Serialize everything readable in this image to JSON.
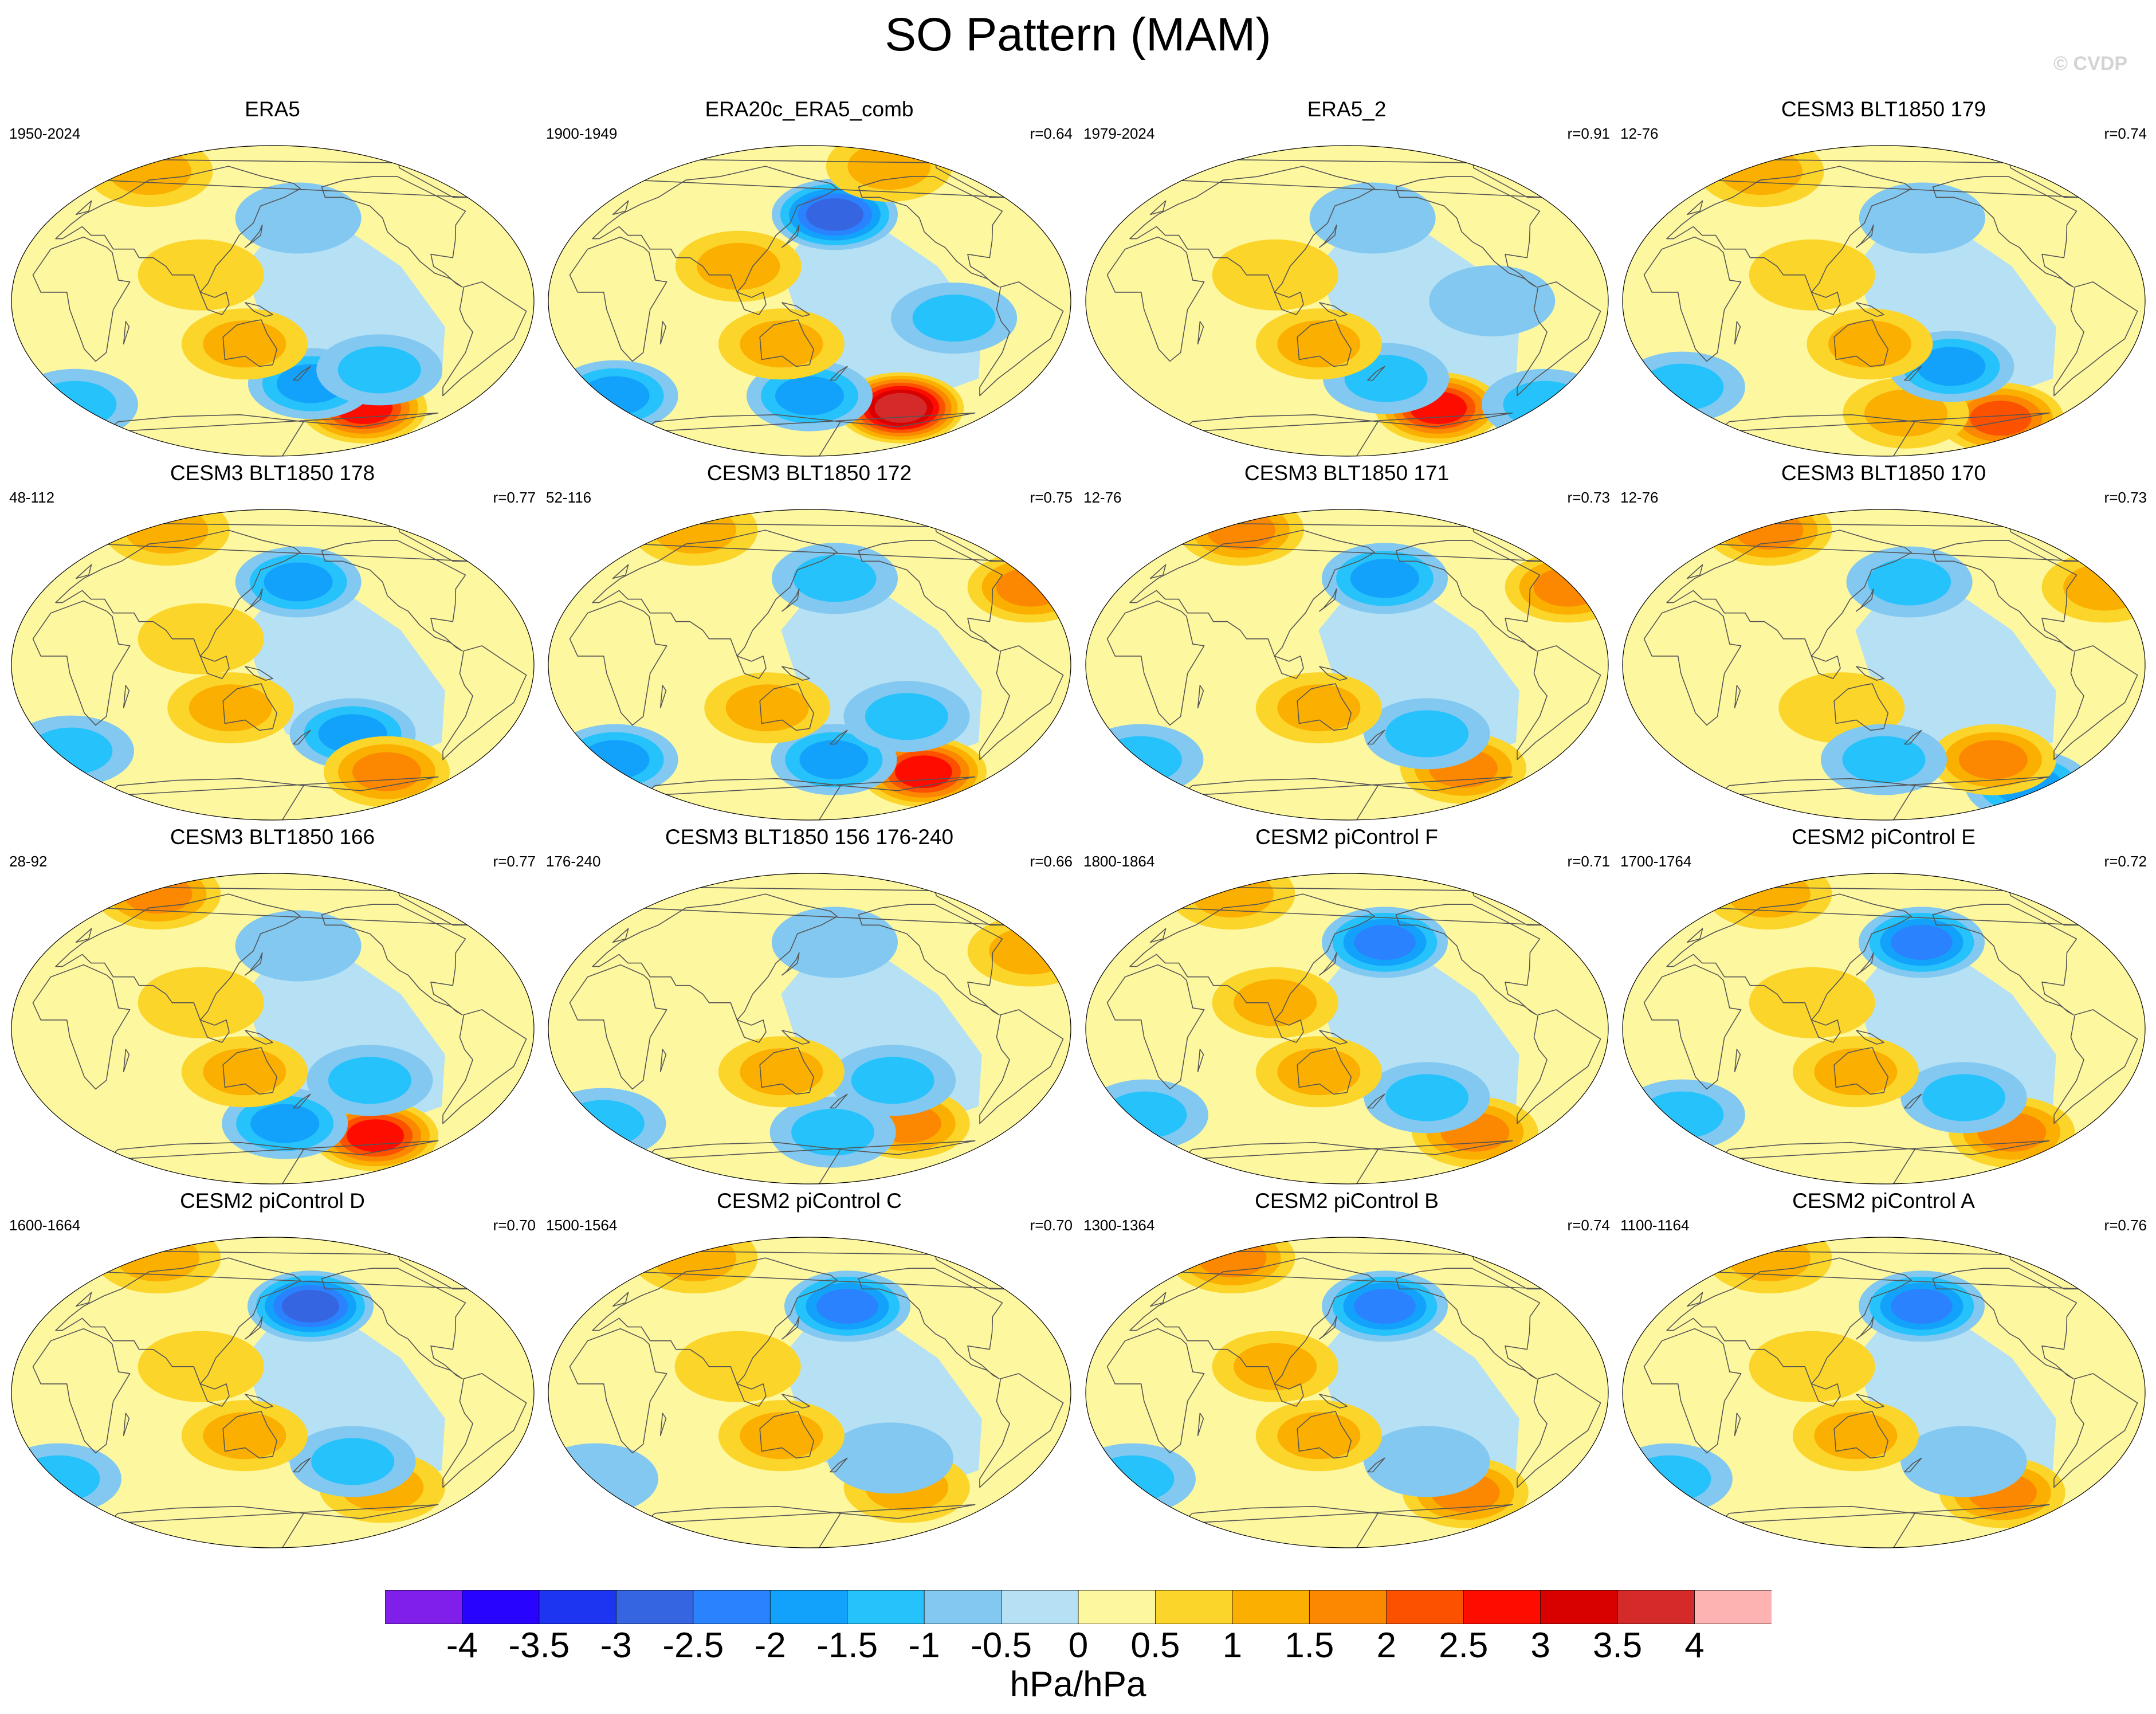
{
  "title": "SO Pattern (MAM)",
  "copyright": "© CVDP",
  "colors": {
    "levels": [
      "#7f1fe9",
      "#2804ff",
      "#1d34f0",
      "#3565e0",
      "#2a82ff",
      "#12a2fb",
      "#26c2fb",
      "#82c8f0",
      "#b6e0f4",
      "#fdf7a0",
      "#fcd52a",
      "#fbaf00",
      "#fb8800",
      "#fc5200",
      "#fc0d00",
      "#d90000",
      "#d52a2a",
      "#feb3b3"
    ],
    "coastline": "#555555"
  },
  "chart_data": {
    "type": "contour-map-grid",
    "title": "SO Pattern (MAM)",
    "projection": "Robinson, Pacific-centered",
    "units": "hPa/hPa",
    "colorbar": {
      "ticks": [
        "-4",
        "-3.5",
        "-3",
        "-2.5",
        "-2",
        "-1.5",
        "-1",
        "-0.5",
        "0",
        "0.5",
        "1",
        "1.5",
        "2",
        "2.5",
        "3",
        "3.5",
        "4"
      ],
      "range": [
        -4.5,
        4.5
      ],
      "step": 0.5
    },
    "panels": [
      {
        "title": "ERA5",
        "years": "1950-2024",
        "r": "",
        "features": [
          {
            "lon": -130,
            "lat": -62,
            "value": 2.7
          },
          {
            "lon": 180,
            "lat": -48,
            "value": -1.6
          },
          {
            "lon": -130,
            "lat": -40,
            "value": -1.1
          },
          {
            "lon": 130,
            "lat": -25,
            "value": 1.1
          },
          {
            "lon": 100,
            "lat": 15,
            "value": 0.8
          },
          {
            "lon": -20,
            "lat": -60,
            "value": -1.2
          },
          {
            "lon": 170,
            "lat": 48,
            "value": -0.6
          },
          {
            "lon": 20,
            "lat": 75,
            "value": 1.0
          }
        ]
      },
      {
        "title": "ERA20c_ERA5_comb",
        "years": "1900-1949",
        "r": "r=0.64",
        "features": [
          {
            "lon": -130,
            "lat": -62,
            "value": 3.6
          },
          {
            "lon": 170,
            "lat": 50,
            "value": -2.6
          },
          {
            "lon": 150,
            "lat": -55,
            "value": -1.6
          },
          {
            "lon": -110,
            "lat": -10,
            "value": -1.0
          },
          {
            "lon": 130,
            "lat": -25,
            "value": 1.1
          },
          {
            "lon": 100,
            "lat": 20,
            "value": 1.1
          },
          {
            "lon": -10,
            "lat": -55,
            "value": -1.6
          },
          {
            "lon": -120,
            "lat": 78,
            "value": 1.1
          }
        ]
      },
      {
        "title": "ERA5_2",
        "years": "1979-2024",
        "r": "r=0.91",
        "features": [
          {
            "lon": -130,
            "lat": -62,
            "value": 2.8
          },
          {
            "lon": 180,
            "lat": -45,
            "value": -1.1
          },
          {
            "lon": -40,
            "lat": -60,
            "value": -1.3
          },
          {
            "lon": 130,
            "lat": -25,
            "value": 1.2
          },
          {
            "lon": 100,
            "lat": 15,
            "value": 0.9
          },
          {
            "lon": 170,
            "lat": 48,
            "value": -0.8
          },
          {
            "lon": -110,
            "lat": 0,
            "value": -0.7
          }
        ]
      },
      {
        "title": "CESM3 BLT1850 179",
        "years": "12-76",
        "r": "r=0.74",
        "features": [
          {
            "lon": -100,
            "lat": -68,
            "value": 2.2
          },
          {
            "lon": 170,
            "lat": -65,
            "value": 1.3
          },
          {
            "lon": -160,
            "lat": -38,
            "value": -1.5
          },
          {
            "lon": 180,
            "lat": 48,
            "value": -0.9
          },
          {
            "lon": 140,
            "lat": -25,
            "value": 1.1
          },
          {
            "lon": 100,
            "lat": 15,
            "value": 0.7
          },
          {
            "lon": -10,
            "lat": -50,
            "value": -1.1
          },
          {
            "lon": 20,
            "lat": 75,
            "value": 1.0
          }
        ]
      },
      {
        "title": "CESM3 BLT1850 178",
        "years": "48-112",
        "r": "r=0.77",
        "features": [
          {
            "lon": 170,
            "lat": 48,
            "value": -1.7
          },
          {
            "lon": -150,
            "lat": -40,
            "value": -1.6
          },
          {
            "lon": -110,
            "lat": -62,
            "value": 1.6
          },
          {
            "lon": 120,
            "lat": -25,
            "value": 1.0
          },
          {
            "lon": 100,
            "lat": 15,
            "value": 0.8
          },
          {
            "lon": -10,
            "lat": -50,
            "value": -1.3
          },
          {
            "lon": 30,
            "lat": 78,
            "value": 1.0
          }
        ]
      },
      {
        "title": "CESM3 BLT1850 172",
        "years": "52-116",
        "r": "r=0.75",
        "features": [
          {
            "lon": -110,
            "lat": -62,
            "value": 2.8
          },
          {
            "lon": 170,
            "lat": -55,
            "value": -1.6
          },
          {
            "lon": -10,
            "lat": -55,
            "value": -1.6
          },
          {
            "lon": -40,
            "lat": 45,
            "value": 1.6
          },
          {
            "lon": 170,
            "lat": 50,
            "value": -1.0
          },
          {
            "lon": 120,
            "lat": -25,
            "value": 1.0
          },
          {
            "lon": 20,
            "lat": 78,
            "value": 1.4
          },
          {
            "lon": -140,
            "lat": -30,
            "value": -1.0
          }
        ]
      },
      {
        "title": "CESM3 BLT1850 171",
        "years": "12-76",
        "r": "r=0.73",
        "features": [
          {
            "lon": 180,
            "lat": 50,
            "value": -1.8
          },
          {
            "lon": -110,
            "lat": -60,
            "value": 1.6
          },
          {
            "lon": -40,
            "lat": 45,
            "value": 1.5
          },
          {
            "lon": 30,
            "lat": 78,
            "value": 1.8
          },
          {
            "lon": -150,
            "lat": -40,
            "value": -1.1
          },
          {
            "lon": 130,
            "lat": -25,
            "value": 1.0
          },
          {
            "lon": -20,
            "lat": -55,
            "value": -1.1
          }
        ]
      },
      {
        "title": "CESM3 BLT1850 170",
        "years": "12-76",
        "r": "r=0.73",
        "features": [
          {
            "lon": -70,
            "lat": -70,
            "value": -1.7
          },
          {
            "lon": -120,
            "lat": -55,
            "value": 1.6
          },
          {
            "lon": 20,
            "lat": 78,
            "value": 1.7
          },
          {
            "lon": 170,
            "lat": 48,
            "value": -1.2
          },
          {
            "lon": 120,
            "lat": -25,
            "value": 0.9
          },
          {
            "lon": 150,
            "lat": -55,
            "value": -1.2
          },
          {
            "lon": -40,
            "lat": 45,
            "value": 1.0
          }
        ]
      },
      {
        "title": "CESM3 BLT1850 166",
        "years": "28-92",
        "r": "r=0.77",
        "features": [
          {
            "lon": -120,
            "lat": -62,
            "value": 2.6
          },
          {
            "lon": 160,
            "lat": -55,
            "value": -1.6
          },
          {
            "lon": -140,
            "lat": -30,
            "value": -1.2
          },
          {
            "lon": 130,
            "lat": -25,
            "value": 1.1
          },
          {
            "lon": 20,
            "lat": 78,
            "value": 1.5
          },
          {
            "lon": 100,
            "lat": 15,
            "value": 0.7
          },
          {
            "lon": 170,
            "lat": 48,
            "value": -0.8
          }
        ]
      },
      {
        "title": "CESM3 BLT1850 156 176-240",
        "years": "176-240",
        "r": "r=0.66",
        "features": [
          {
            "lon": -130,
            "lat": -55,
            "value": 1.6
          },
          {
            "lon": 170,
            "lat": -60,
            "value": -1.3
          },
          {
            "lon": -40,
            "lat": 45,
            "value": 1.3
          },
          {
            "lon": -150,
            "lat": -30,
            "value": -1.2
          },
          {
            "lon": 130,
            "lat": -25,
            "value": 1.0
          },
          {
            "lon": 170,
            "lat": 50,
            "value": -0.8
          },
          {
            "lon": -20,
            "lat": -55,
            "value": -1.1
          }
        ]
      },
      {
        "title": "CESM2 piControl F",
        "years": "1800-1864",
        "r": "r=0.71",
        "features": [
          {
            "lon": 180,
            "lat": 50,
            "value": -2.2
          },
          {
            "lon": -100,
            "lat": -60,
            "value": 1.6
          },
          {
            "lon": -150,
            "lat": -40,
            "value": -1.1
          },
          {
            "lon": 130,
            "lat": -25,
            "value": 1.4
          },
          {
            "lon": 100,
            "lat": 15,
            "value": 1.0
          },
          {
            "lon": -10,
            "lat": -50,
            "value": -1.2
          },
          {
            "lon": 20,
            "lat": 78,
            "value": 1.2
          }
        ]
      },
      {
        "title": "CESM2 piControl E",
        "years": "1700-1764",
        "r": "r=0.72",
        "features": [
          {
            "lon": 180,
            "lat": 50,
            "value": -2.2
          },
          {
            "lon": -100,
            "lat": -60,
            "value": 1.6
          },
          {
            "lon": -150,
            "lat": -40,
            "value": -1.0
          },
          {
            "lon": 130,
            "lat": -25,
            "value": 1.2
          },
          {
            "lon": 100,
            "lat": 15,
            "value": 0.9
          },
          {
            "lon": -10,
            "lat": -50,
            "value": -1.2
          },
          {
            "lon": 20,
            "lat": 78,
            "value": 1.0
          }
        ]
      },
      {
        "title": "CESM2 piControl D",
        "years": "1600-1664",
        "r": "r=0.70",
        "features": [
          {
            "lon": 180,
            "lat": 50,
            "value": -2.6
          },
          {
            "lon": -120,
            "lat": -55,
            "value": 1.3
          },
          {
            "lon": -150,
            "lat": -40,
            "value": -1.1
          },
          {
            "lon": 130,
            "lat": -25,
            "value": 1.2
          },
          {
            "lon": 100,
            "lat": 15,
            "value": 0.9
          },
          {
            "lon": -20,
            "lat": -50,
            "value": -1.2
          },
          {
            "lon": 20,
            "lat": 78,
            "value": 1.2
          }
        ]
      },
      {
        "title": "CESM2 piControl C",
        "years": "1500-1564",
        "r": "r=0.70",
        "features": [
          {
            "lon": 180,
            "lat": 50,
            "value": -2.3
          },
          {
            "lon": -130,
            "lat": -55,
            "value": 1.3
          },
          {
            "lon": -150,
            "lat": -38,
            "value": -0.8
          },
          {
            "lon": 130,
            "lat": -25,
            "value": 1.2
          },
          {
            "lon": 100,
            "lat": 15,
            "value": 0.9
          },
          {
            "lon": -20,
            "lat": -50,
            "value": -0.9
          },
          {
            "lon": 20,
            "lat": 78,
            "value": 1.1
          }
        ]
      },
      {
        "title": "CESM2 piControl B",
        "years": "1300-1364",
        "r": "r=0.74",
        "features": [
          {
            "lon": 180,
            "lat": 50,
            "value": -2.4
          },
          {
            "lon": -110,
            "lat": -58,
            "value": 1.6
          },
          {
            "lon": -150,
            "lat": -40,
            "value": -0.8
          },
          {
            "lon": 130,
            "lat": -25,
            "value": 1.2
          },
          {
            "lon": 100,
            "lat": 15,
            "value": 1.0
          },
          {
            "lon": -20,
            "lat": -50,
            "value": -1.1
          },
          {
            "lon": 20,
            "lat": 78,
            "value": 1.6
          }
        ]
      },
      {
        "title": "CESM2 piControl A",
        "years": "1100-1164",
        "r": "r=0.76",
        "features": [
          {
            "lon": 180,
            "lat": 50,
            "value": -2.1
          },
          {
            "lon": -110,
            "lat": -58,
            "value": 1.7
          },
          {
            "lon": -150,
            "lat": -40,
            "value": -0.8
          },
          {
            "lon": 130,
            "lat": -25,
            "value": 1.1
          },
          {
            "lon": 100,
            "lat": 15,
            "value": 0.9
          },
          {
            "lon": -20,
            "lat": -50,
            "value": -1.3
          },
          {
            "lon": 20,
            "lat": 78,
            "value": 1.1
          }
        ]
      }
    ]
  }
}
